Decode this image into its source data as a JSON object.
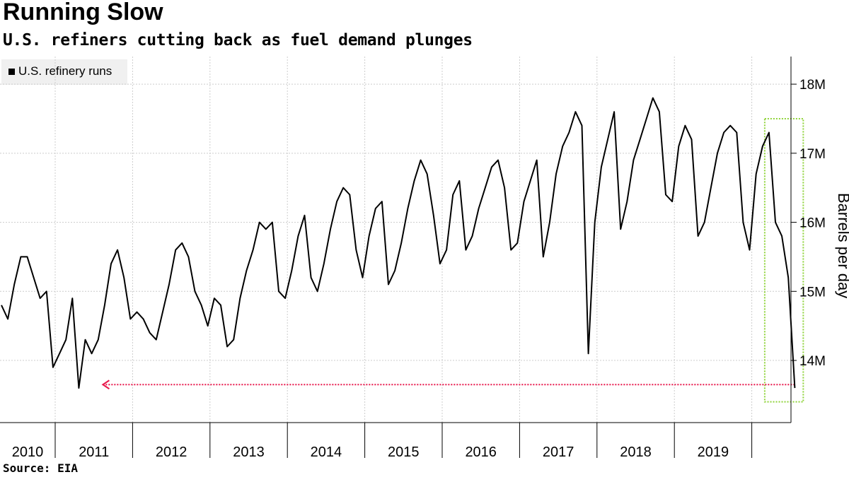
{
  "header": {
    "title": "Running Slow",
    "subtitle": "U.S. refiners cutting back as fuel demand plunges"
  },
  "footer": {
    "source": "Source: EIA"
  },
  "colors": {
    "line": "#000000",
    "grid": "#cccccc",
    "highlight_box": "#8fd33a",
    "arrow": "#e8174b",
    "legend_bg": "#f0f0f0"
  },
  "chart_data": {
    "type": "line",
    "series": [
      {
        "name": "U.S. refinery runs",
        "x": [
          "2010-01",
          "2010-02",
          "2010-03",
          "2010-04",
          "2010-05",
          "2010-06",
          "2010-07",
          "2010-08",
          "2010-09",
          "2010-10",
          "2010-11",
          "2010-12",
          "2011-01",
          "2011-02",
          "2011-03",
          "2011-04",
          "2011-05",
          "2011-06",
          "2011-07",
          "2011-08",
          "2011-09",
          "2011-10",
          "2011-11",
          "2011-12",
          "2012-01",
          "2012-02",
          "2012-03",
          "2012-04",
          "2012-05",
          "2012-06",
          "2012-07",
          "2012-08",
          "2012-09",
          "2012-10",
          "2012-11",
          "2012-12",
          "2013-01",
          "2013-02",
          "2013-03",
          "2013-04",
          "2013-05",
          "2013-06",
          "2013-07",
          "2013-08",
          "2013-09",
          "2013-10",
          "2013-11",
          "2013-12",
          "2014-01",
          "2014-02",
          "2014-03",
          "2014-04",
          "2014-05",
          "2014-06",
          "2014-07",
          "2014-08",
          "2014-09",
          "2014-10",
          "2014-11",
          "2014-12",
          "2015-01",
          "2015-02",
          "2015-03",
          "2015-04",
          "2015-05",
          "2015-06",
          "2015-07",
          "2015-08",
          "2015-09",
          "2015-10",
          "2015-11",
          "2015-12",
          "2016-01",
          "2016-02",
          "2016-03",
          "2016-04",
          "2016-05",
          "2016-06",
          "2016-07",
          "2016-08",
          "2016-09",
          "2016-10",
          "2016-11",
          "2016-12",
          "2017-01",
          "2017-02",
          "2017-03",
          "2017-04",
          "2017-05",
          "2017-06",
          "2017-07",
          "2017-08",
          "2017-09",
          "2017-10",
          "2017-11",
          "2017-12",
          "2018-01",
          "2018-02",
          "2018-03",
          "2018-04",
          "2018-05",
          "2018-06",
          "2018-07",
          "2018-08",
          "2018-09",
          "2018-10",
          "2018-11",
          "2018-12",
          "2019-01",
          "2019-02",
          "2019-03",
          "2019-04",
          "2019-05",
          "2019-06",
          "2019-07",
          "2019-08",
          "2019-09",
          "2019-10",
          "2019-11",
          "2019-12",
          "2020-01",
          "2020-02",
          "2020-03",
          "2020-04"
        ],
        "values": [
          14.8,
          14.6,
          15.1,
          15.5,
          15.5,
          15.2,
          14.9,
          15.0,
          13.9,
          14.1,
          14.3,
          14.9,
          13.6,
          14.3,
          14.1,
          14.3,
          14.8,
          15.4,
          15.6,
          15.2,
          14.6,
          14.7,
          14.6,
          14.4,
          14.3,
          14.7,
          15.1,
          15.6,
          15.7,
          15.5,
          15.0,
          14.8,
          14.5,
          14.9,
          14.8,
          14.2,
          14.3,
          14.9,
          15.3,
          15.6,
          16.0,
          15.9,
          16.0,
          15.0,
          14.9,
          15.3,
          15.8,
          16.1,
          15.2,
          15.0,
          15.4,
          15.9,
          16.3,
          16.5,
          16.4,
          15.6,
          15.2,
          15.8,
          16.2,
          16.3,
          15.1,
          15.3,
          15.7,
          16.2,
          16.6,
          16.9,
          16.7,
          16.1,
          15.4,
          15.6,
          16.4,
          16.6,
          15.6,
          15.8,
          16.2,
          16.5,
          16.8,
          16.9,
          16.5,
          15.6,
          15.7,
          16.3,
          16.6,
          16.9,
          15.5,
          16.0,
          16.7,
          17.1,
          17.3,
          17.6,
          17.4,
          14.1,
          16.0,
          16.8,
          17.2,
          17.6,
          15.9,
          16.3,
          16.9,
          17.2,
          17.5,
          17.8,
          17.6,
          16.4,
          16.3,
          17.1,
          17.4,
          17.2,
          15.8,
          16.0,
          16.5,
          17.0,
          17.3,
          17.4,
          17.3,
          16.0,
          15.6,
          16.7,
          17.1,
          17.3,
          16.0,
          15.8,
          15.2,
          13.6
        ]
      }
    ],
    "xlabel": "",
    "ylabel": "Barrels per day",
    "x_tick_labels": [
      "2010",
      "2011",
      "2012",
      "2013",
      "2014",
      "2015",
      "2016",
      "2017",
      "2018",
      "2019"
    ],
    "y_ticks": [
      14,
      15,
      16,
      17,
      18
    ],
    "y_tick_labels": [
      "14M",
      "15M",
      "16M",
      "17M",
      "18M"
    ],
    "ylim": [
      13.1,
      18.4
    ],
    "y_axis_position": "right",
    "grid": true,
    "legend": {
      "position": "top-left",
      "entries": [
        "U.S. refinery runs"
      ]
    },
    "annotations": [
      {
        "type": "highlight-box",
        "x_range": [
          "2019-12",
          "2020-04"
        ],
        "y_range": [
          13.4,
          17.5
        ]
      },
      {
        "type": "dotted-arrow",
        "from": "2020-04",
        "to": "2011-01",
        "y": 13.65
      }
    ]
  }
}
